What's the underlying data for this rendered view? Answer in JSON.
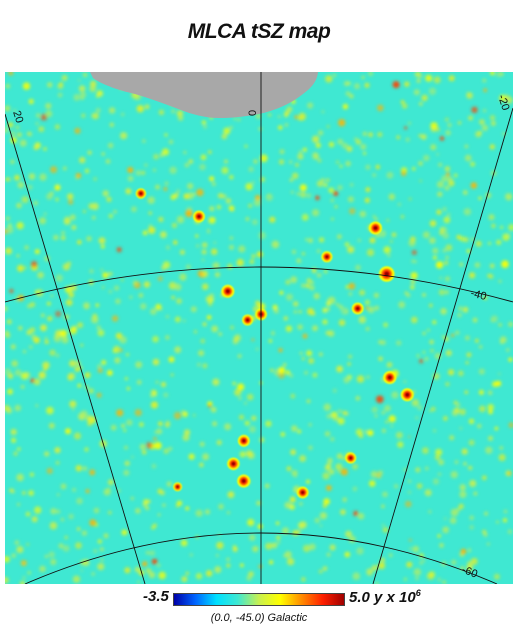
{
  "chart_data": {
    "type": "heatmap",
    "title": "MLCA tSZ map",
    "projection": "gnomonic",
    "center": "(0.0, -45.0) Galactic",
    "colorbar": {
      "min_label": "-3.5",
      "max_label_main": "5.0 y x 10",
      "max_label_exp": "6",
      "min": -3.5,
      "max": 5.0,
      "colormap": [
        "#0000a8",
        "#0064ff",
        "#00e0ff",
        "#3fe8d2",
        "#c8f050",
        "#ffff00",
        "#ff8c00",
        "#ff2000",
        "#a00000"
      ]
    },
    "graticule": {
      "longitude_labels": [
        "20",
        "0",
        "-20"
      ],
      "latitude_labels": [
        "-40",
        "-60"
      ]
    },
    "masked_region_color": "#a8a8a8",
    "background_color": "#3fe8d2",
    "clusters": [
      {
        "lon": 18.5,
        "lat": -31.0,
        "strength": 0.8
      },
      {
        "lon": 9.5,
        "lat": -33.0,
        "strength": 0.9
      },
      {
        "lon": 5.0,
        "lat": -39.5,
        "strength": 1.0
      },
      {
        "lon": 2.0,
        "lat": -42.0,
        "strength": 0.85
      },
      {
        "lon": 0.0,
        "lat": -41.5,
        "strength": 0.9
      },
      {
        "lon": -10.0,
        "lat": -36.5,
        "strength": 0.85
      },
      {
        "lon": -17.5,
        "lat": -34.0,
        "strength": 1.0
      },
      {
        "lon": -19.0,
        "lat": -38.0,
        "strength": 1.2
      },
      {
        "lon": -14.5,
        "lat": -41.0,
        "strength": 0.9
      },
      {
        "lon": -19.0,
        "lat": -47.0,
        "strength": 1.0
      },
      {
        "lon": -21.5,
        "lat": -48.5,
        "strength": 1.0
      },
      {
        "lon": 2.5,
        "lat": -52.5,
        "strength": 0.9
      },
      {
        "lon": 4.0,
        "lat": -54.5,
        "strength": 0.95
      },
      {
        "lon": 2.5,
        "lat": -56.0,
        "strength": 1.0
      },
      {
        "lon": -6.0,
        "lat": -57.0,
        "strength": 0.9
      },
      {
        "lon": -13.0,
        "lat": -54.0,
        "strength": 0.85
      },
      {
        "lon": 12.0,
        "lat": -56.5,
        "strength": 0.7
      }
    ]
  }
}
